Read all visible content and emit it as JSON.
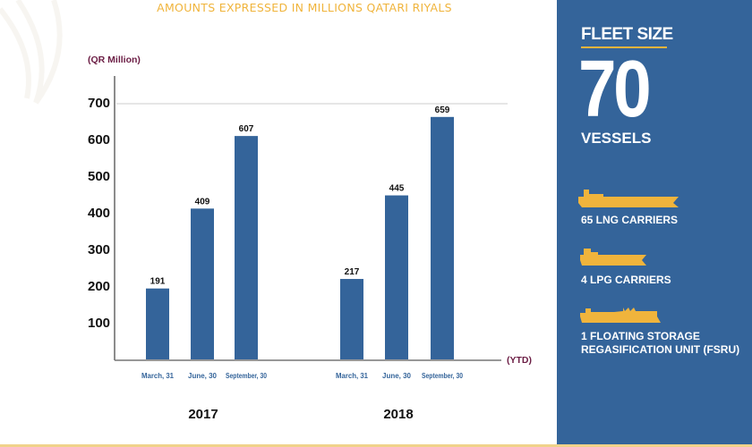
{
  "chart_data": {
    "type": "bar",
    "title": "AMOUNTS EXPRESSED IN MILLIONS QATARI RIYALS",
    "ylabel": "(QR Million)",
    "xlabel": "(YTD)",
    "ylim": [
      0,
      700
    ],
    "yticks": [
      100,
      200,
      300,
      400,
      500,
      600,
      700
    ],
    "grid": "700 line only",
    "groups": [
      {
        "label": "2017",
        "categories": [
          "March, 31",
          "June, 30",
          "September, 30"
        ],
        "values": [
          191,
          409,
          607
        ]
      },
      {
        "label": "2018",
        "categories": [
          "March, 31",
          "June, 30",
          "September, 30"
        ],
        "values": [
          217,
          445,
          659
        ]
      }
    ],
    "colors": {
      "bar": "#34649a",
      "title": "#f0b43c",
      "axis_label": "#6b1d44",
      "category": "#34649a"
    }
  },
  "sidebar": {
    "heading": "FLEET SIZE",
    "count": "70",
    "unit": "VESSELS",
    "items": [
      {
        "icon": "lng-carrier-icon",
        "label": "65 LNG CARRIERS"
      },
      {
        "icon": "lpg-carrier-icon",
        "label": "4 LPG CARRIERS"
      },
      {
        "icon": "fsru-icon",
        "label": "1 FLOATING STORAGE REGASIFICATION UNIT (FSRU)"
      }
    ],
    "colors": {
      "background": "#34649a",
      "icon": "#f0b43c"
    }
  }
}
